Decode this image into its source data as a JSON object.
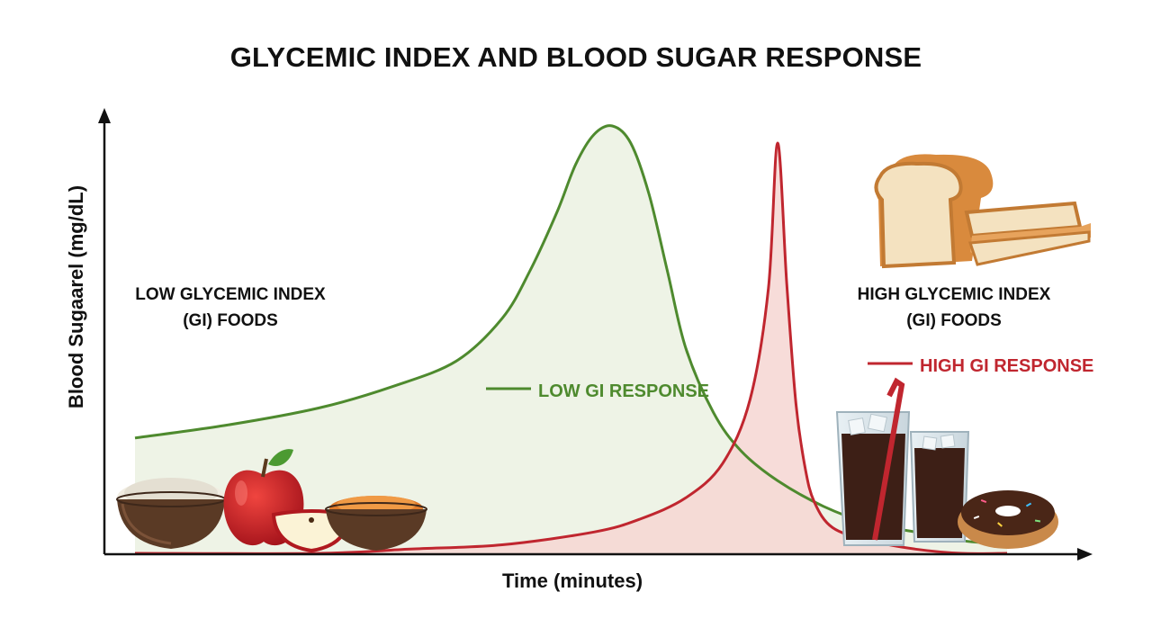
{
  "chart_data": {
    "type": "line",
    "title": "GLYCEMIC INDEX AND BLOOD SUGAR RESPONSE",
    "xlabel": "Time (minutes)",
    "ylabel": "Blood Sugaarel (mg/dL)",
    "grid": false,
    "x_ticks_shown": false,
    "y_ticks_shown": false,
    "xlim": [
      0,
      100
    ],
    "ylim": [
      0,
      100
    ],
    "legend_placement": "inline",
    "colors": {
      "low": "#4e8a2e",
      "high": "#c0262f",
      "low_fill": "#eef3e6",
      "high_fill": "#f6d6d2",
      "axis": "#111111"
    },
    "series": [
      {
        "name": "LOW GI RESPONSE",
        "x": [
          0,
          10,
          20,
          28,
          35,
          40,
          43,
          46,
          48,
          50,
          52,
          54,
          56,
          58,
          60,
          63,
          66,
          70,
          75,
          80,
          85,
          90,
          95
        ],
        "y": [
          27,
          30,
          34,
          39,
          45,
          55,
          66,
          80,
          91,
          98,
          100,
          96,
          84,
          66,
          48,
          33,
          24,
          17,
          11,
          7,
          5,
          3,
          2
        ]
      },
      {
        "name": "HIGH GI RESPONSE",
        "x": [
          0,
          20,
          30,
          40,
          50,
          55,
          60,
          64,
          67,
          69,
          70,
          71,
          72,
          73,
          74,
          76,
          80,
          85,
          90,
          95
        ],
        "y": [
          0,
          0,
          1,
          2,
          5,
          8,
          13,
          21,
          36,
          62,
          96,
          63,
          35,
          20,
          12,
          6,
          3,
          1,
          0,
          0
        ]
      }
    ],
    "annotations": {
      "low_group": [
        "LOW GLYCEMIC INDEX",
        "(GI) FOODS"
      ],
      "high_group": [
        "HIGH GLYCEMIC INDEX",
        "(GI) FOODS"
      ]
    },
    "illustrations": {
      "low_gi_foods": [
        "rice-bowl-icon",
        "apple-icon",
        "lentil-bowl-icon"
      ],
      "high_gi_foods": [
        "bread-loaf-icon",
        "cola-glass-icon",
        "donut-icon"
      ]
    }
  }
}
